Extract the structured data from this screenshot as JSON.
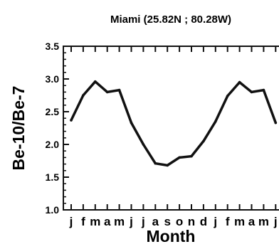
{
  "chart_data": {
    "type": "line",
    "title": "Miami (25.82N  ;  80.28W)",
    "xlabel": "Month",
    "ylabel": "Be-10/Be-7",
    "ylim": [
      1.0,
      3.5
    ],
    "yticks": [
      "1.0",
      "1.5",
      "2.0",
      "2.5",
      "3.0",
      "3.5"
    ],
    "categories": [
      "j",
      "f",
      "m",
      "a",
      "m",
      "j",
      "j",
      "a",
      "s",
      "o",
      "n",
      "d",
      "j",
      "f",
      "m",
      "a",
      "m",
      "j"
    ],
    "values": [
      2.37,
      2.75,
      2.96,
      2.8,
      2.83,
      2.33,
      2.0,
      1.71,
      1.68,
      1.8,
      1.82,
      2.05,
      2.35,
      2.74,
      2.95,
      2.8,
      2.83,
      2.33
    ],
    "grid": false,
    "line_color": "#111111"
  }
}
